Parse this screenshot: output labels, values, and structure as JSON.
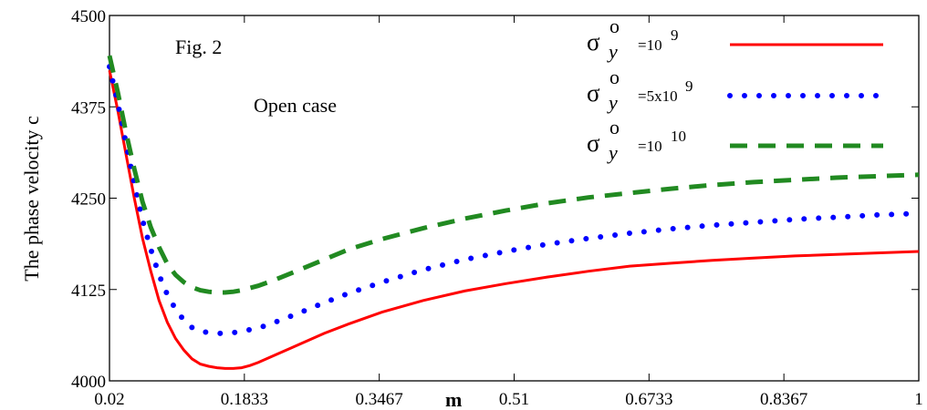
{
  "chart_data": {
    "type": "line",
    "annotation_fig": "Fig. 2",
    "annotation_case": "Open case",
    "xlabel": "m",
    "ylabel": "The phase velocity c",
    "xlim": [
      0.02,
      1
    ],
    "ylim": [
      4000,
      4500
    ],
    "x_ticks": [
      "0.02",
      "0.1833",
      "0.3467",
      "0.51",
      "0.6733",
      "0.8367",
      "1"
    ],
    "y_ticks": [
      "4000",
      "4125",
      "4250",
      "4375",
      "4500"
    ],
    "legend_position": "top-right",
    "series": [
      {
        "legend": {
          "symbol": "σ",
          "sub": "y",
          "sup": "o",
          "eq": "=10",
          "exp": "9"
        },
        "color": "#ff0000",
        "style": "solid",
        "x": [
          0.02,
          0.03,
          0.04,
          0.05,
          0.06,
          0.07,
          0.08,
          0.09,
          0.1,
          0.11,
          0.12,
          0.13,
          0.14,
          0.15,
          0.16,
          0.17,
          0.18,
          0.19,
          0.2,
          0.22,
          0.25,
          0.28,
          0.31,
          0.35,
          0.4,
          0.45,
          0.5,
          0.55,
          0.6,
          0.65,
          0.7,
          0.75,
          0.8,
          0.85,
          0.9,
          0.95,
          1.0
        ],
        "values": [
          4425,
          4370,
          4310,
          4250,
          4195,
          4150,
          4110,
          4080,
          4058,
          4042,
          4030,
          4023,
          4020,
          4018,
          4017,
          4017,
          4018,
          4021,
          4025,
          4035,
          4050,
          4065,
          4078,
          4094,
          4110,
          4123,
          4133,
          4142,
          4150,
          4157,
          4161,
          4165,
          4168,
          4171,
          4173,
          4175,
          4177
        ]
      },
      {
        "legend": {
          "symbol": "σ",
          "sub": "y",
          "sup": "o",
          "eq": "=5x10",
          "exp": "9"
        },
        "color": "#0000ff",
        "style": "dotted",
        "x": [
          0.02,
          0.03,
          0.04,
          0.05,
          0.06,
          0.07,
          0.08,
          0.09,
          0.1,
          0.11,
          0.12,
          0.13,
          0.14,
          0.15,
          0.16,
          0.17,
          0.18,
          0.2,
          0.22,
          0.25,
          0.28,
          0.31,
          0.35,
          0.4,
          0.45,
          0.5,
          0.55,
          0.6,
          0.65,
          0.7,
          0.75,
          0.8,
          0.85,
          0.9,
          0.95,
          1.0
        ],
        "values": [
          4430,
          4380,
          4325,
          4270,
          4220,
          4180,
          4145,
          4118,
          4098,
          4083,
          4073,
          4068,
          4066,
          4065,
          4065,
          4066,
          4068,
          4072,
          4080,
          4093,
          4107,
          4120,
          4135,
          4152,
          4166,
          4177,
          4187,
          4195,
          4202,
          4208,
          4213,
          4217,
          4221,
          4224,
          4227,
          4229
        ]
      },
      {
        "legend": {
          "symbol": "σ",
          "sub": "y",
          "sup": "o",
          "eq": "=10",
          "exp": "10"
        },
        "color": "#218a21",
        "style": "dashed",
        "x": [
          0.02,
          0.03,
          0.04,
          0.05,
          0.06,
          0.07,
          0.08,
          0.09,
          0.1,
          0.11,
          0.12,
          0.13,
          0.14,
          0.15,
          0.16,
          0.17,
          0.18,
          0.2,
          0.22,
          0.25,
          0.28,
          0.31,
          0.35,
          0.4,
          0.45,
          0.5,
          0.55,
          0.6,
          0.65,
          0.7,
          0.75,
          0.8,
          0.85,
          0.9,
          0.95,
          1.0
        ],
        "values": [
          4445,
          4395,
          4340,
          4290,
          4245,
          4210,
          4183,
          4160,
          4145,
          4135,
          4128,
          4124,
          4122,
          4121,
          4121,
          4122,
          4124,
          4130,
          4138,
          4152,
          4166,
          4180,
          4194,
          4209,
          4222,
          4233,
          4243,
          4251,
          4257,
          4263,
          4268,
          4272,
          4275,
          4278,
          4280,
          4282
        ]
      }
    ]
  }
}
